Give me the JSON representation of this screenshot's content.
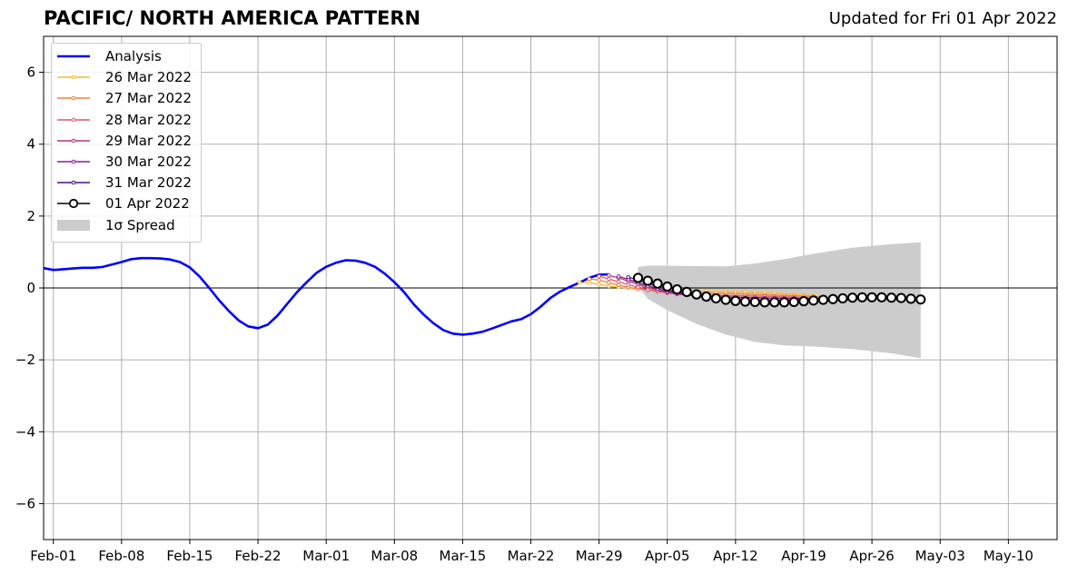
{
  "title": "PACIFIC/ NORTH AMERICA PATTERN",
  "subtitle": "Updated for Fri 01 Apr 2022",
  "chart_data": {
    "type": "line",
    "title": "PACIFIC/ NORTH AMERICA PATTERN",
    "xlabel": "",
    "ylabel": "",
    "xlim": [
      "2022-01-31",
      "2022-05-15"
    ],
    "ylim": [
      -7,
      7
    ],
    "x_ticks": [
      "Feb-01",
      "Feb-08",
      "Feb-15",
      "Feb-22",
      "Mar-01",
      "Mar-08",
      "Mar-15",
      "Mar-22",
      "Mar-29",
      "Apr-05",
      "Apr-12",
      "Apr-19",
      "Apr-26",
      "May-03",
      "May-10"
    ],
    "y_ticks": [
      -6,
      -4,
      -2,
      0,
      2,
      4,
      6
    ],
    "y_tick_labels": [
      "−6",
      "−4",
      "−2",
      "0",
      "2",
      "4",
      "6"
    ],
    "grid": true,
    "legend_position": "top-left",
    "analysis": {
      "name": "Analysis",
      "color": "#0000ff",
      "points": [
        [
          "2022-01-31",
          0.55
        ],
        [
          "2022-02-01",
          0.5
        ],
        [
          "2022-02-02",
          0.52
        ],
        [
          "2022-02-03",
          0.54
        ],
        [
          "2022-02-04",
          0.56
        ],
        [
          "2022-02-05",
          0.56
        ],
        [
          "2022-02-06",
          0.58
        ],
        [
          "2022-02-07",
          0.65
        ],
        [
          "2022-02-08",
          0.72
        ],
        [
          "2022-02-09",
          0.8
        ],
        [
          "2022-02-10",
          0.83
        ],
        [
          "2022-02-11",
          0.83
        ],
        [
          "2022-02-12",
          0.82
        ],
        [
          "2022-02-13",
          0.79
        ],
        [
          "2022-02-14",
          0.72
        ],
        [
          "2022-02-15",
          0.57
        ],
        [
          "2022-02-16",
          0.32
        ],
        [
          "2022-02-17",
          0.0
        ],
        [
          "2022-02-18",
          -0.34
        ],
        [
          "2022-02-19",
          -0.64
        ],
        [
          "2022-02-20",
          -0.9
        ],
        [
          "2022-02-21",
          -1.07
        ],
        [
          "2022-02-22",
          -1.12
        ],
        [
          "2022-02-23",
          -1.02
        ],
        [
          "2022-02-24",
          -0.77
        ],
        [
          "2022-02-25",
          -0.44
        ],
        [
          "2022-02-26",
          -0.12
        ],
        [
          "2022-02-27",
          0.16
        ],
        [
          "2022-02-28",
          0.42
        ],
        [
          "2022-03-01",
          0.59
        ],
        [
          "2022-03-02",
          0.7
        ],
        [
          "2022-03-03",
          0.77
        ],
        [
          "2022-03-04",
          0.76
        ],
        [
          "2022-03-05",
          0.7
        ],
        [
          "2022-03-06",
          0.59
        ],
        [
          "2022-03-07",
          0.4
        ],
        [
          "2022-03-08",
          0.16
        ],
        [
          "2022-03-09",
          -0.12
        ],
        [
          "2022-03-10",
          -0.46
        ],
        [
          "2022-03-11",
          -0.74
        ],
        [
          "2022-03-12",
          -0.98
        ],
        [
          "2022-03-13",
          -1.17
        ],
        [
          "2022-03-14",
          -1.27
        ],
        [
          "2022-03-15",
          -1.3
        ],
        [
          "2022-03-16",
          -1.27
        ],
        [
          "2022-03-17",
          -1.22
        ],
        [
          "2022-03-18",
          -1.13
        ],
        [
          "2022-03-19",
          -1.03
        ],
        [
          "2022-03-20",
          -0.93
        ],
        [
          "2022-03-21",
          -0.87
        ],
        [
          "2022-03-22",
          -0.73
        ],
        [
          "2022-03-23",
          -0.52
        ],
        [
          "2022-03-24",
          -0.28
        ],
        [
          "2022-03-25",
          -0.1
        ],
        [
          "2022-03-26",
          0.03
        ],
        [
          "2022-03-27",
          0.15
        ],
        [
          "2022-03-28",
          0.28
        ],
        [
          "2022-03-29",
          0.37
        ],
        [
          "2022-03-30",
          0.38
        ]
      ]
    },
    "forecasts": [
      {
        "name": "26 Mar 2022",
        "color": "#fcb826",
        "start": "2022-03-27",
        "values": [
          0.15,
          0.15,
          0.1,
          0.05,
          0.02,
          0.0,
          -0.02,
          -0.04,
          -0.06,
          -0.07,
          -0.08,
          -0.08,
          -0.09,
          -0.09,
          -0.1,
          -0.1,
          -0.11,
          -0.11,
          -0.12,
          -0.13,
          -0.14,
          -0.16,
          -0.18,
          -0.2,
          -0.22
        ]
      },
      {
        "name": "27 Mar 2022",
        "color": "#f4813a",
        "start": "2022-03-28",
        "values": [
          0.25,
          0.22,
          0.15,
          0.08,
          0.02,
          -0.03,
          -0.06,
          -0.09,
          -0.11,
          -0.12,
          -0.13,
          -0.14,
          -0.14,
          -0.15,
          -0.15,
          -0.16,
          -0.17,
          -0.18,
          -0.19,
          -0.2,
          -0.21,
          -0.22,
          -0.23,
          -0.24,
          -0.25
        ]
      },
      {
        "name": "28 Mar 2022",
        "color": "#dc5b6b",
        "start": "2022-03-29",
        "values": [
          0.32,
          0.25,
          0.17,
          0.09,
          0.02,
          -0.05,
          -0.1,
          -0.14,
          -0.17,
          -0.19,
          -0.2,
          -0.2,
          -0.21,
          -0.21,
          -0.22,
          -0.22,
          -0.23,
          -0.23,
          -0.24,
          -0.25,
          -0.26,
          -0.27,
          -0.28,
          -0.29,
          -0.3
        ]
      },
      {
        "name": "29 Mar 2022",
        "color": "#b7327f",
        "start": "2022-03-30",
        "values": [
          0.35,
          0.28,
          0.19,
          0.1,
          0.02,
          -0.06,
          -0.12,
          -0.17,
          -0.2,
          -0.22,
          -0.24,
          -0.25,
          -0.26,
          -0.26,
          -0.27,
          -0.27,
          -0.28,
          -0.28,
          -0.29,
          -0.29,
          -0.3,
          -0.31,
          -0.32,
          -0.33,
          -0.34
        ]
      },
      {
        "name": "30 Mar 2022",
        "color": "#8b1b95",
        "start": "2022-03-31",
        "values": [
          0.32,
          0.24,
          0.15,
          0.06,
          -0.02,
          -0.09,
          -0.15,
          -0.19,
          -0.22,
          -0.24,
          -0.25,
          -0.26,
          -0.26,
          -0.27,
          -0.27,
          -0.28,
          -0.28,
          -0.29,
          -0.29,
          -0.3,
          -0.3,
          -0.31,
          -0.32,
          -0.33,
          -0.34
        ]
      },
      {
        "name": "31 Mar 2022",
        "color": "#4f0e84",
        "start": "2022-04-01",
        "values": [
          0.3,
          0.22,
          0.13,
          0.04,
          -0.05,
          -0.12,
          -0.18,
          -0.23,
          -0.27,
          -0.29,
          -0.31,
          -0.32,
          -0.33,
          -0.33,
          -0.34,
          -0.34,
          -0.34,
          -0.34,
          -0.33,
          -0.32,
          -0.31,
          -0.3,
          -0.29,
          -0.28,
          -0.27
        ]
      },
      {
        "name": "01 Apr 2022",
        "color": "#000000",
        "marker": "open-circle",
        "start": "2022-04-02",
        "values": [
          0.28,
          0.2,
          0.12,
          0.04,
          -0.04,
          -0.11,
          -0.18,
          -0.24,
          -0.29,
          -0.33,
          -0.36,
          -0.38,
          -0.39,
          -0.4,
          -0.4,
          -0.4,
          -0.39,
          -0.37,
          -0.35,
          -0.33,
          -0.31,
          -0.29,
          -0.27,
          -0.26,
          -0.26,
          -0.26,
          -0.27,
          -0.28,
          -0.3,
          -0.32
        ]
      }
    ],
    "spread": {
      "name": "1σ Spread",
      "color": "#cccccc",
      "points": [
        [
          "2022-04-02",
          0.05,
          0.58
        ],
        [
          "2022-04-03",
          -0.3,
          0.62
        ],
        [
          "2022-04-05",
          -0.62,
          0.62
        ],
        [
          "2022-04-08",
          -1.0,
          0.61
        ],
        [
          "2022-04-11",
          -1.3,
          0.6
        ],
        [
          "2022-04-14",
          -1.5,
          0.68
        ],
        [
          "2022-04-17",
          -1.6,
          0.8
        ],
        [
          "2022-04-20",
          -1.63,
          0.95
        ],
        [
          "2022-04-24",
          -1.7,
          1.12
        ],
        [
          "2022-04-28",
          -1.82,
          1.22
        ],
        [
          "2022-05-01",
          -1.95,
          1.27
        ]
      ]
    },
    "legend": [
      "Analysis",
      "26 Mar 2022",
      "27 Mar 2022",
      "28 Mar 2022",
      "29 Mar 2022",
      "30 Mar 2022",
      "31 Mar 2022",
      "01 Apr 2022",
      "1σ Spread"
    ]
  }
}
